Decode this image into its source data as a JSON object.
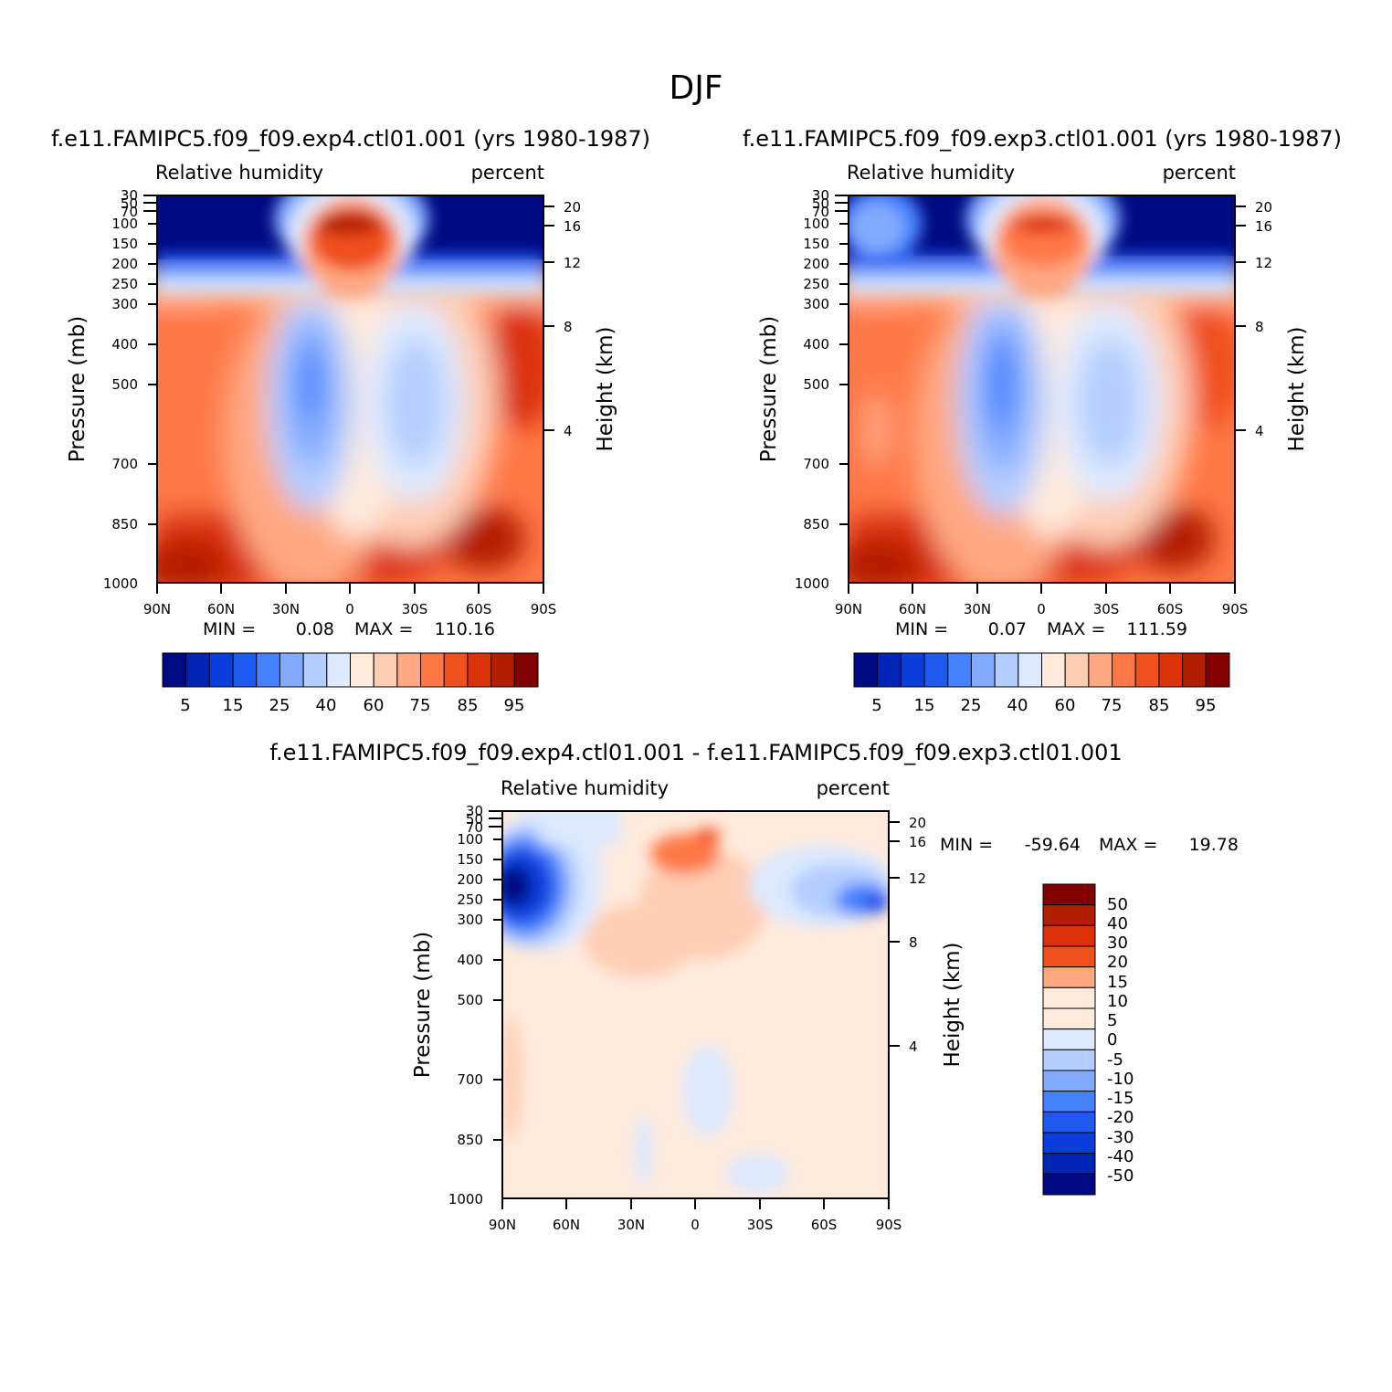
{
  "figure": {
    "season_title": "DJF"
  },
  "chart_data": [
    {
      "type": "heatmap",
      "title": "f.e11.FAMIPC5.f09_f09.exp4.ctl01.001 (yrs 1980-1987)",
      "left_label": "Relative humidity",
      "right_label": "percent",
      "xlabel": "",
      "ylabel": "Pressure (mb)",
      "ylabel_right": "Height (km)",
      "x_ticks": [
        "90N",
        "60N",
        "30N",
        "0",
        "30S",
        "60S",
        "90S"
      ],
      "y_ticks": [
        "30",
        "50",
        "70",
        "100",
        "150",
        "200",
        "250",
        "300",
        "400",
        "500",
        "700",
        "850",
        "1000"
      ],
      "y_right_ticks": [
        "20",
        "16",
        "12",
        "8",
        "4"
      ],
      "min_label": "MIN =",
      "min_value": "0.08",
      "max_label": "MAX =",
      "max_value": "110.16",
      "colorbar_labels": [
        "5",
        "15",
        "25",
        "40",
        "60",
        "75",
        "85",
        "95"
      ],
      "colorbar_colors": [
        "#000a82",
        "#0024b4",
        "#0a3ddc",
        "#1e5af0",
        "#4682ff",
        "#82aaff",
        "#b4cdff",
        "#dce9ff",
        "#ffeadc",
        "#ffcdb4",
        "#ffa882",
        "#ff7846",
        "#f0501e",
        "#dc320a",
        "#b41e00",
        "#820000"
      ]
    },
    {
      "type": "heatmap",
      "title": "f.e11.FAMIPC5.f09_f09.exp3.ctl01.001 (yrs 1980-1987)",
      "left_label": "Relative humidity",
      "right_label": "percent",
      "xlabel": "",
      "ylabel": "Pressure (mb)",
      "ylabel_right": "Height (km)",
      "x_ticks": [
        "90N",
        "60N",
        "30N",
        "0",
        "30S",
        "60S",
        "90S"
      ],
      "y_ticks": [
        "30",
        "50",
        "70",
        "100",
        "150",
        "200",
        "250",
        "300",
        "400",
        "500",
        "700",
        "850",
        "1000"
      ],
      "y_right_ticks": [
        "20",
        "16",
        "12",
        "8",
        "4"
      ],
      "min_label": "MIN =",
      "min_value": "0.07",
      "max_label": "MAX =",
      "max_value": "111.59",
      "colorbar_labels": [
        "5",
        "15",
        "25",
        "40",
        "60",
        "75",
        "85",
        "95"
      ],
      "colorbar_colors": [
        "#000a82",
        "#0024b4",
        "#0a3ddc",
        "#1e5af0",
        "#4682ff",
        "#82aaff",
        "#b4cdff",
        "#dce9ff",
        "#ffeadc",
        "#ffcdb4",
        "#ffa882",
        "#ff7846",
        "#f0501e",
        "#dc320a",
        "#b41e00",
        "#820000"
      ]
    },
    {
      "type": "heatmap",
      "title": "f.e11.FAMIPC5.f09_f09.exp4.ctl01.001 - f.e11.FAMIPC5.f09_f09.exp3.ctl01.001",
      "left_label": "Relative humidity",
      "right_label": "percent",
      "xlabel": "",
      "ylabel": "Pressure (mb)",
      "ylabel_right": "Height (km)",
      "x_ticks": [
        "90N",
        "60N",
        "30N",
        "0",
        "30S",
        "60S",
        "90S"
      ],
      "y_ticks": [
        "30",
        "50",
        "70",
        "100",
        "150",
        "200",
        "250",
        "300",
        "400",
        "500",
        "700",
        "850",
        "1000"
      ],
      "y_right_ticks": [
        "20",
        "16",
        "12",
        "8",
        "4"
      ],
      "min_label": "MIN =",
      "min_value": "-59.64",
      "max_label": "MAX =",
      "max_value": "19.78",
      "colorbar_labels": [
        "50",
        "40",
        "30",
        "20",
        "15",
        "10",
        "5",
        "0",
        "-5",
        "-10",
        "-15",
        "-20",
        "-30",
        "-40",
        "-50"
      ],
      "colorbar_colors": [
        "#820000",
        "#b41e00",
        "#dc320a",
        "#f0501e",
        "#ffa882",
        "#ffeadc",
        "#ffeadc",
        "#dce9ff",
        "#b4cdff",
        "#82aaff",
        "#4682ff",
        "#1e5af0",
        "#0a3ddc",
        "#0024b4",
        "#000a82"
      ]
    }
  ]
}
